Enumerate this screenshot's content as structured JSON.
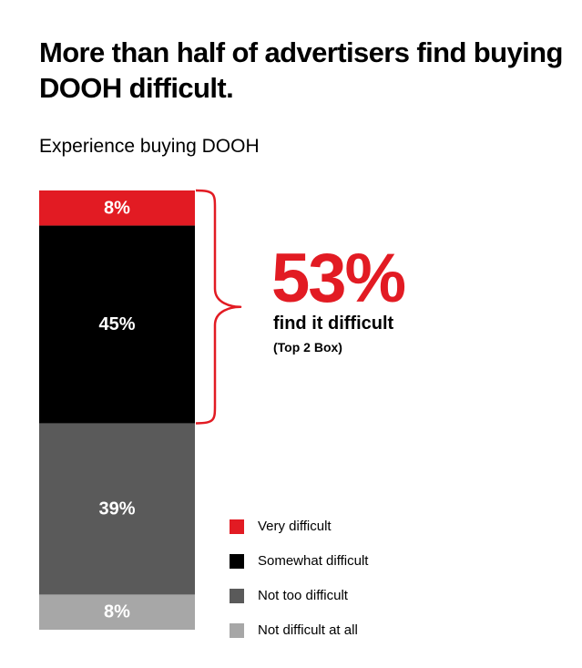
{
  "chart_data": {
    "type": "bar",
    "stacked": true,
    "title": "More than half of advertisers find buying DOOH difficult.",
    "subtitle": "Experience buying DOOH",
    "series": [
      {
        "name": "Very difficult",
        "value": 8,
        "label": "8%",
        "color": "#e21b23"
      },
      {
        "name": "Somewhat difficult",
        "value": 45,
        "label": "45%",
        "color": "#000000"
      },
      {
        "name": "Not too difficult",
        "value": 39,
        "label": "39%",
        "color": "#5a5a5a"
      },
      {
        "name": "Not difficult at all",
        "value": 8,
        "label": "8%",
        "color": "#a7a7a7"
      }
    ],
    "total": 100,
    "legend_position": "bottom-right",
    "annotation": {
      "value": "53%",
      "label": "find it difficult",
      "note": "(Top 2 Box)",
      "color": "#e21b23",
      "spans": [
        "Very difficult",
        "Somewhat difficult"
      ]
    }
  }
}
